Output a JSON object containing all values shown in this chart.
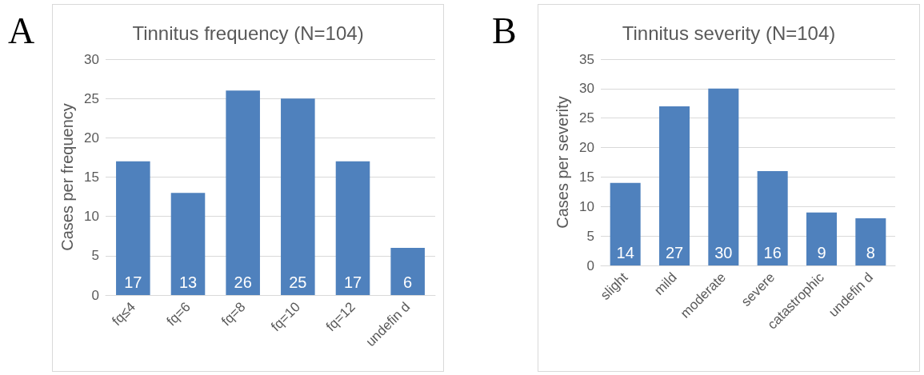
{
  "chart_data": [
    {
      "type": "bar",
      "title": "Tinnitus frequency (N=104)",
      "ylabel": "Cases per frequency",
      "annotations": [
        "A"
      ],
      "categories": [
        "fq≤4",
        "fq=6",
        "fq=8",
        "fq=10",
        "fq=12",
        "undefin d"
      ],
      "values": [
        17,
        13,
        26,
        25,
        17,
        6
      ],
      "color": "#4f81bd",
      "ylim": [
        0,
        30
      ],
      "yticks": [
        0,
        5,
        10,
        15,
        20,
        25,
        30
      ],
      "grid": "y",
      "data_labels": true
    },
    {
      "type": "bar",
      "title": "Tinnitus severity (N=104)",
      "ylabel": "Cases per severity",
      "annotations": [
        "B"
      ],
      "categories": [
        "slight",
        "mild",
        "moderate",
        "severe",
        "catastrophic",
        "undefin d"
      ],
      "values": [
        14,
        27,
        30,
        16,
        9,
        8
      ],
      "color": "#4f81bd",
      "ylim": [
        0,
        35
      ],
      "yticks": [
        0,
        5,
        10,
        15,
        20,
        25,
        30,
        35
      ],
      "grid": "y",
      "data_labels": true
    }
  ]
}
